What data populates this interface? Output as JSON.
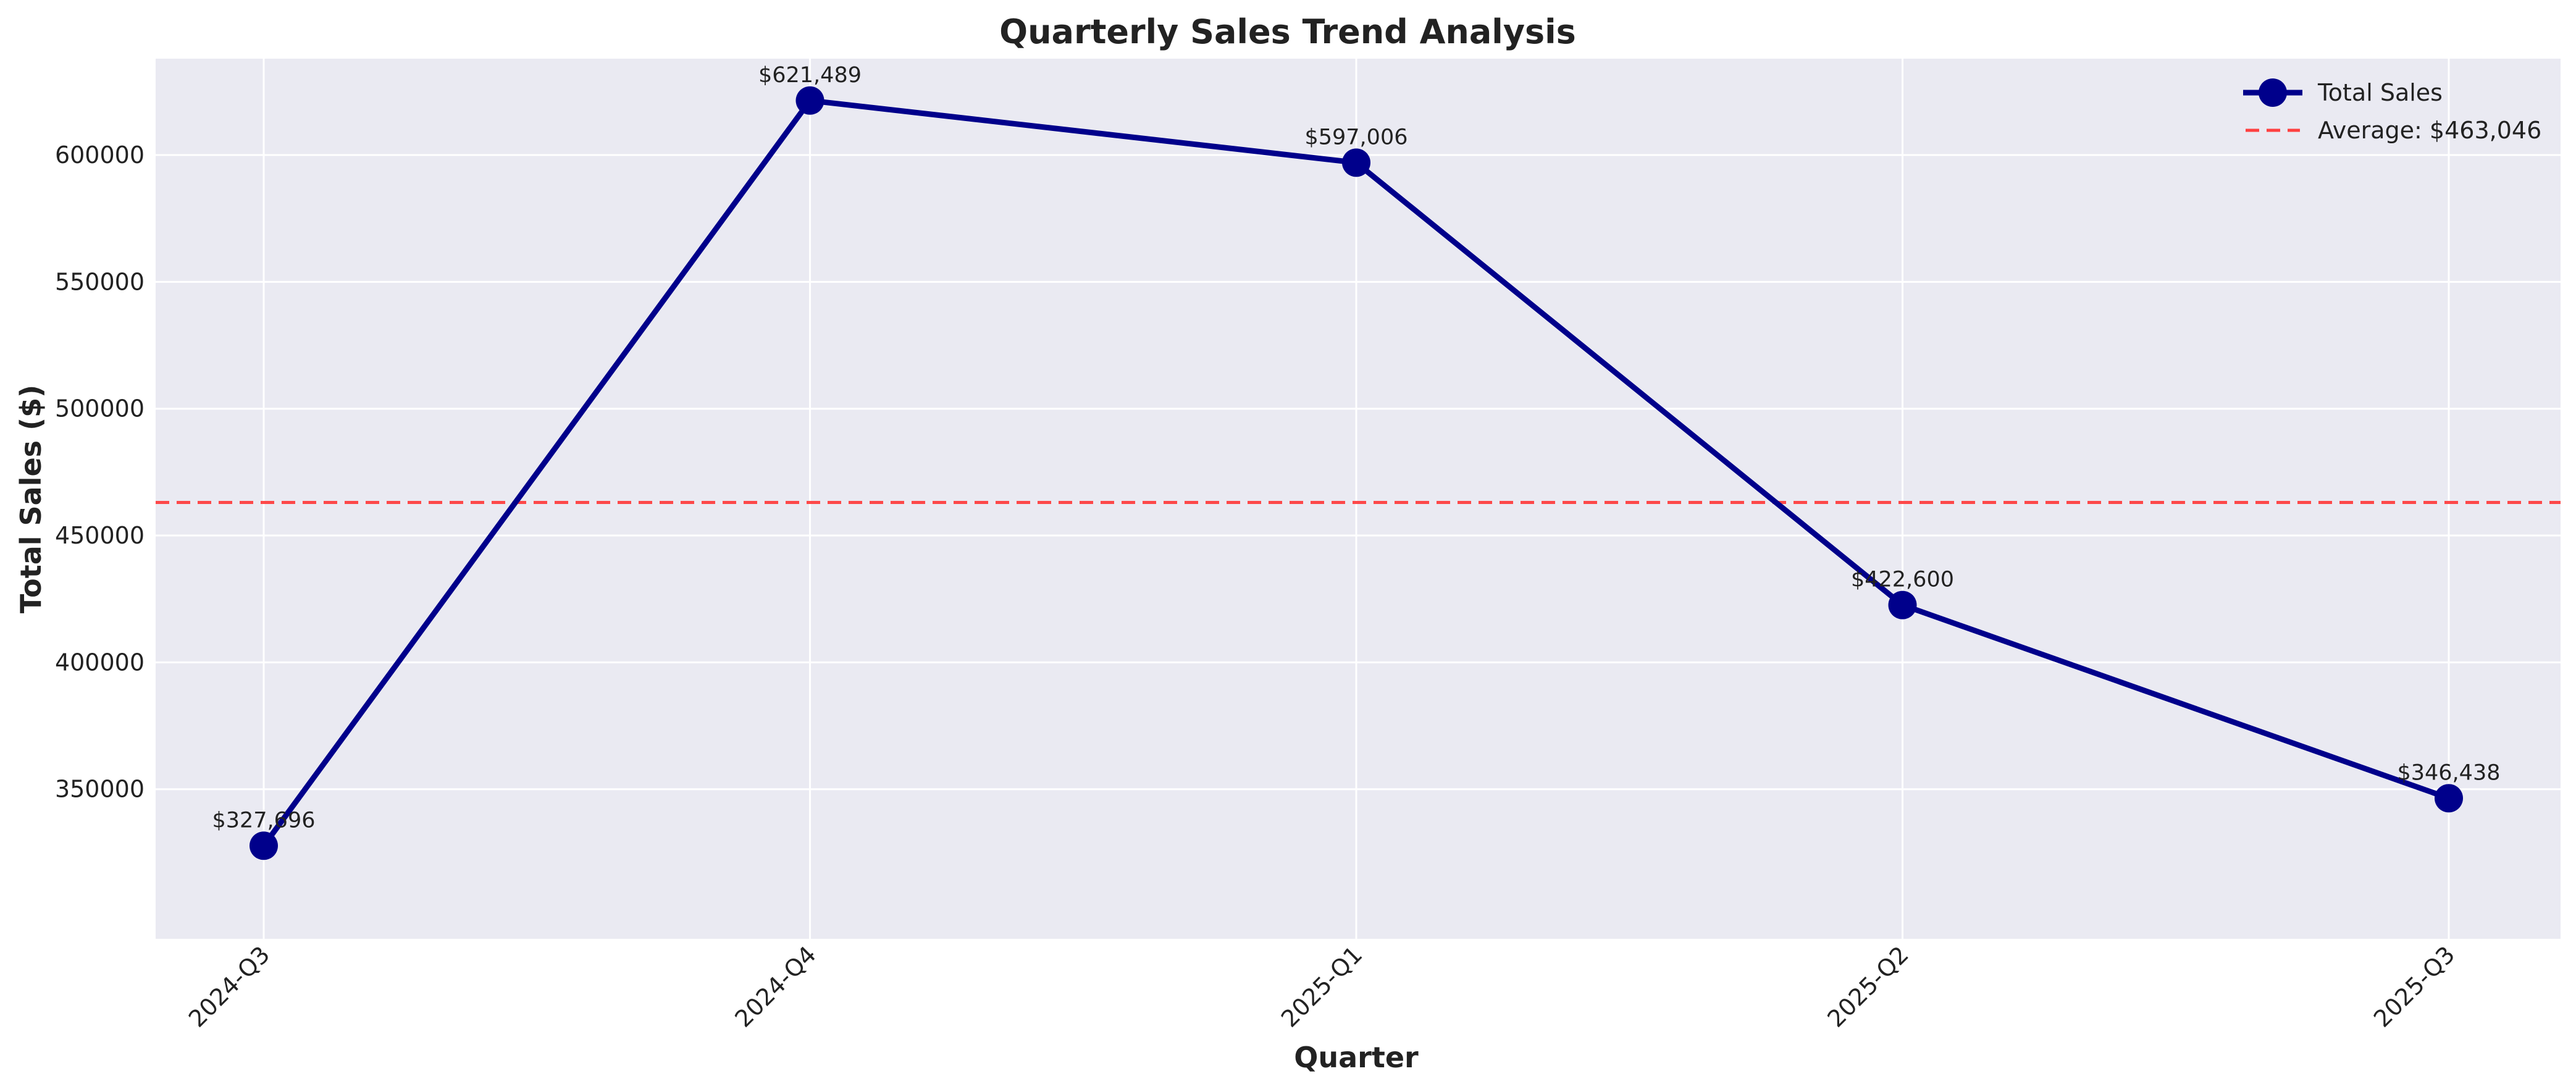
{
  "chart_data": {
    "type": "line",
    "title": "Quarterly Sales Trend Analysis",
    "xlabel": "Quarter",
    "ylabel": "Total Sales ($)",
    "categories": [
      "2024-Q3",
      "2024-Q4",
      "2025-Q1",
      "2025-Q2",
      "2025-Q3"
    ],
    "series": [
      {
        "name": "Total Sales",
        "values": [
          327696,
          621489,
          597006,
          422600,
          346438
        ],
        "labels": [
          "$327,696",
          "$621,489",
          "$597,006",
          "$422,600",
          "$346,438"
        ],
        "color": "#00008b"
      }
    ],
    "reference_line": {
      "name": "Average: $463,046",
      "value": 463046,
      "color": "#ff4040",
      "style": "dashed"
    },
    "ylim": [
      291000,
      638000
    ],
    "yticks": [
      350000,
      400000,
      450000,
      500000,
      550000,
      600000
    ],
    "ytick_labels": [
      "350000",
      "400000",
      "450000",
      "500000",
      "550000",
      "600000"
    ],
    "grid": true,
    "legend_position": "top-right",
    "background_color": "#eaeaf2"
  }
}
